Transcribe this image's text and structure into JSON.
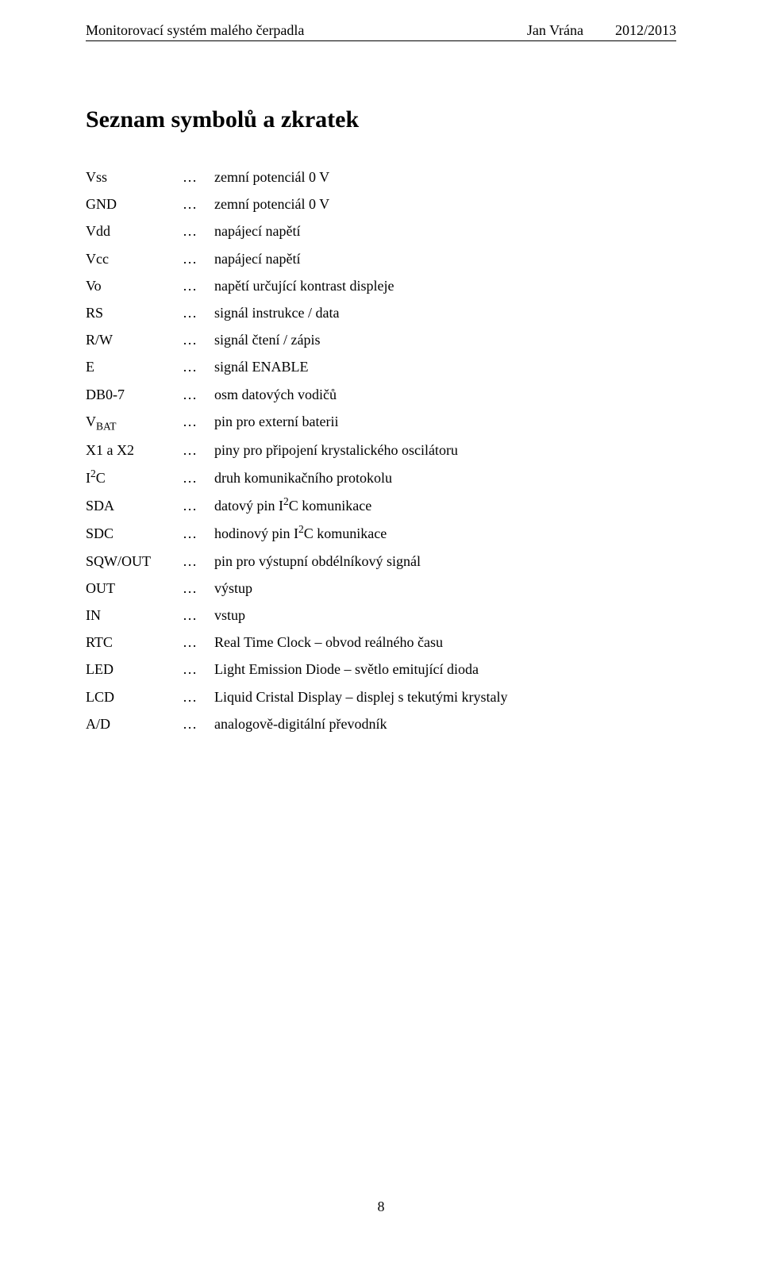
{
  "header": {
    "left": "Monitorovací systém malého čerpadla",
    "author": "Jan Vrána",
    "year": "2012/2013"
  },
  "title": "Seznam symbolů a zkratek",
  "leader": "…",
  "symbols": [
    {
      "name_pre": "Vss",
      "name_sub": "",
      "name_post": "",
      "desc_pre": "zemní potenciál 0 V",
      "desc_sup": "",
      "desc_post": ""
    },
    {
      "name_pre": "GND",
      "name_sub": "",
      "name_post": "",
      "desc_pre": "zemní potenciál 0 V",
      "desc_sup": "",
      "desc_post": ""
    },
    {
      "name_pre": "Vdd",
      "name_sub": "",
      "name_post": "",
      "desc_pre": "napájecí napětí",
      "desc_sup": "",
      "desc_post": ""
    },
    {
      "name_pre": "Vcc",
      "name_sub": "",
      "name_post": "",
      "desc_pre": "napájecí napětí",
      "desc_sup": "",
      "desc_post": ""
    },
    {
      "name_pre": "Vo",
      "name_sub": "",
      "name_post": "",
      "desc_pre": "napětí určující kontrast displeje",
      "desc_sup": "",
      "desc_post": ""
    },
    {
      "name_pre": "RS",
      "name_sub": "",
      "name_post": "",
      "desc_pre": "signál instrukce / data",
      "desc_sup": "",
      "desc_post": ""
    },
    {
      "name_pre": "R/W",
      "name_sub": "",
      "name_post": "",
      "desc_pre": "signál čtení / zápis",
      "desc_sup": "",
      "desc_post": ""
    },
    {
      "name_pre": "E",
      "name_sub": "",
      "name_post": "",
      "desc_pre": "signál ENABLE",
      "desc_sup": "",
      "desc_post": ""
    },
    {
      "name_pre": "DB0-7",
      "name_sub": "",
      "name_post": "",
      "desc_pre": "osm datových vodičů",
      "desc_sup": "",
      "desc_post": ""
    },
    {
      "name_pre": "V",
      "name_sub": "BAT",
      "name_post": "",
      "desc_pre": "pin pro externí baterii",
      "desc_sup": "",
      "desc_post": ""
    },
    {
      "name_pre": "X1 a X2",
      "name_sub": "",
      "name_post": "",
      "desc_pre": "piny pro připojení krystalického oscilátoru",
      "desc_sup": "",
      "desc_post": ""
    },
    {
      "name_pre": "I",
      "name_sub": "",
      "name_post": "C",
      "name_sup": "2",
      "desc_pre": "druh komunikačního protokolu",
      "desc_sup": "",
      "desc_post": ""
    },
    {
      "name_pre": "SDA",
      "name_sub": "",
      "name_post": "",
      "desc_pre": "datový pin I",
      "desc_sup": "2",
      "desc_post": "C komunikace"
    },
    {
      "name_pre": "SDC",
      "name_sub": "",
      "name_post": "",
      "desc_pre": "hodinový pin I",
      "desc_sup": "2",
      "desc_post": "C komunikace"
    },
    {
      "name_pre": "SQW/OUT",
      "name_sub": "",
      "name_post": "",
      "desc_pre": "pin pro výstupní obdélníkový signál",
      "desc_sup": "",
      "desc_post": ""
    },
    {
      "name_pre": "OUT",
      "name_sub": "",
      "name_post": "",
      "desc_pre": "výstup",
      "desc_sup": "",
      "desc_post": ""
    },
    {
      "name_pre": "IN",
      "name_sub": "",
      "name_post": "",
      "desc_pre": "vstup",
      "desc_sup": "",
      "desc_post": ""
    },
    {
      "name_pre": "RTC",
      "name_sub": "",
      "name_post": "",
      "desc_pre": "Real Time Clock – obvod reálného času",
      "desc_sup": "",
      "desc_post": ""
    },
    {
      "name_pre": "LED",
      "name_sub": "",
      "name_post": "",
      "desc_pre": "Light Emission Diode – světlo emitující dioda",
      "desc_sup": "",
      "desc_post": ""
    },
    {
      "name_pre": "LCD",
      "name_sub": "",
      "name_post": "",
      "desc_pre": "Liquid Cristal Display – displej s tekutými krystaly",
      "desc_sup": "",
      "desc_post": ""
    },
    {
      "name_pre": "A/D",
      "name_sub": "",
      "name_post": "",
      "desc_pre": "analogově-digitální převodník",
      "desc_sup": "",
      "desc_post": ""
    }
  ],
  "page_number": "8"
}
